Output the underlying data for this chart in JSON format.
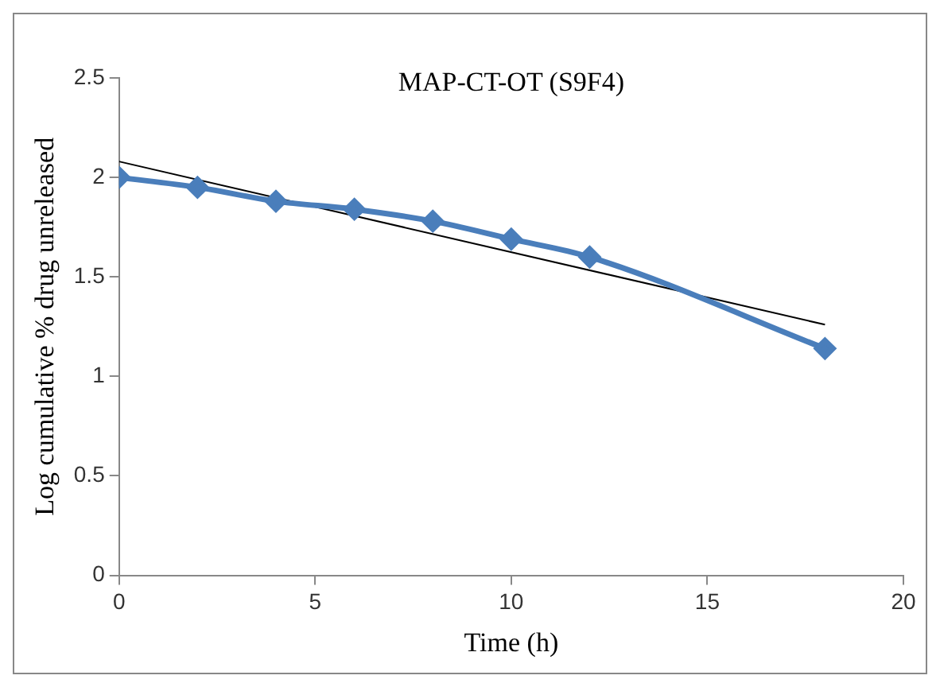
{
  "chart_data": {
    "type": "line",
    "title": "MAP-CT-OT (S9F4)",
    "xlabel": "Time (h)",
    "ylabel": "Log cumulative % drug unreleased",
    "x": [
      0,
      2,
      4,
      6,
      8,
      10,
      12,
      18
    ],
    "series": [
      {
        "color": "#4a7ebb",
        "values": [
          2.0,
          1.95,
          1.88,
          1.84,
          1.78,
          1.69,
          1.6,
          1.14
        ],
        "marker": "diamond"
      },
      {
        "color": "#000000",
        "x": [
          0,
          18
        ],
        "values": [
          2.08,
          1.26
        ],
        "marker": "none"
      }
    ],
    "xlim": [
      0,
      20
    ],
    "xticks": [
      0,
      5,
      10,
      15,
      20
    ],
    "ylim": [
      0,
      2.5
    ],
    "yticks": [
      0,
      0.5,
      1,
      1.5,
      2,
      2.5
    ],
    "grid": false,
    "legend": false
  }
}
